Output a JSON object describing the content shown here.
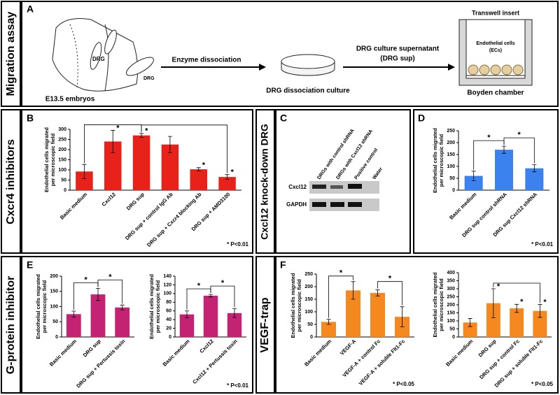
{
  "row_labels": [
    "Migration assay",
    "Cxcr4 inhibitors",
    "Cxcl12 knock-down DRG",
    "G-protein inhibitor",
    "VEGF-trap"
  ],
  "panel_letters": [
    "A",
    "B",
    "C",
    "D",
    "E",
    "F"
  ],
  "diagram": {
    "embryo_labels": [
      "DRG",
      "DRG"
    ],
    "embryo": "E13.5 embryos",
    "step1": "Enzyme dissociation",
    "culture": "DRG dissociation culture",
    "step2": [
      "DRG culture supernatant",
      "(DRG sup)"
    ],
    "insert": "Transwell insert",
    "cells": [
      "Endothelial cells",
      "(ECs)"
    ],
    "chamber": "Boyden chamber"
  },
  "gel": {
    "lanes": [
      "DRGs with control shRNA",
      "DRGs with Cxcl12 shRNA",
      "Positive control",
      "Water"
    ],
    "rows": [
      "Cxcl12",
      "GAPDH"
    ]
  },
  "chart_data": [
    {
      "type": "bar",
      "y_label": [
        "Endothelial cells migrated",
        "per microscopic field"
      ],
      "categories": [
        "Basic medium",
        "Cxcl12",
        "DRG sup",
        "DRG sup + control IgG Ab",
        "DRG sup + Cxcr4 blocking Ab",
        "DRG sup + AMD3100"
      ],
      "values": [
        92,
        240,
        270,
        225,
        103,
        65
      ],
      "errors": [
        35,
        55,
        10,
        40,
        8,
        12
      ],
      "stars": [
        null,
        "*",
        "*",
        null,
        "*",
        "*"
      ],
      "brackets": [
        {
          "pair": [
            0,
            2
          ]
        },
        {
          "pair": [
            2,
            5
          ]
        }
      ],
      "color": "#e8221b",
      "ylim": [
        0,
        300
      ],
      "yticks": [
        0,
        50,
        100,
        150,
        200,
        250,
        300
      ],
      "note": "* P<0.01"
    },
    {
      "type": "bar",
      "y_label": [
        "Endothelial cells migrated",
        "per microscopic field"
      ],
      "categories": [
        "Basic medium",
        "DRG sup control shRNA",
        "DRG sup Cxcl12 shRNA"
      ],
      "values": [
        60,
        170,
        92
      ],
      "errors": [
        20,
        15,
        15
      ],
      "brackets": [
        {
          "pair": [
            0,
            1
          ],
          "label": "*"
        },
        {
          "pair": [
            1,
            2
          ],
          "label": "*"
        }
      ],
      "color": "#3c82ef",
      "ylim": [
        0,
        250
      ],
      "yticks": [
        0,
        50,
        100,
        150,
        200,
        250
      ],
      "note": "* P<0.01"
    },
    {
      "type": "bar",
      "y_label": [
        "Endothelial cells migrated",
        "per microscopic field"
      ],
      "categories": [
        "Basic medium",
        "DRG sup",
        "DRG sup + Pertussis toxin"
      ],
      "values": [
        75,
        140,
        97
      ],
      "errors": [
        10,
        20,
        8
      ],
      "brackets": [
        {
          "pair": [
            0,
            1
          ],
          "label": "*"
        },
        {
          "pair": [
            1,
            2
          ],
          "label": "*"
        }
      ],
      "color": "#c42373",
      "ylim": [
        0,
        200
      ],
      "yticks": [
        0,
        50,
        100,
        150,
        200
      ]
    },
    {
      "type": "bar",
      "y_label": [
        "Endothelial cells migrated",
        "per microscopic field"
      ],
      "categories": [
        "Basic medium",
        "Cxcl12",
        "Cxcl12 + Pertussis toxin"
      ],
      "values": [
        52,
        95,
        55
      ],
      "errors": [
        8,
        3,
        10
      ],
      "brackets": [
        {
          "pair": [
            0,
            1
          ],
          "label": "*"
        },
        {
          "pair": [
            1,
            2
          ],
          "label": "*"
        }
      ],
      "color": "#c42373",
      "ylim": [
        0,
        140
      ],
      "yticks": [
        0,
        20,
        40,
        60,
        80,
        100,
        120,
        140
      ],
      "note": "* P<0.01"
    },
    {
      "type": "bar",
      "y_label": [
        "Endothelial cells migrated",
        "per microscopic field"
      ],
      "categories": [
        "Basic medium",
        "VEGF-A",
        "VEGF-A + control Fc",
        "VEGF-A + soluble Flt1-Fc"
      ],
      "values": [
        60,
        185,
        175,
        80
      ],
      "errors": [
        10,
        35,
        12,
        40
      ],
      "brackets": [
        {
          "pair": [
            0,
            1
          ],
          "label": "*"
        },
        {
          "pair": [
            2,
            3
          ],
          "label": "*"
        }
      ],
      "color": "#f5891f",
      "ylim": [
        0,
        250
      ],
      "yticks": [
        0,
        50,
        100,
        150,
        200,
        250
      ],
      "note": "* P<0.05"
    },
    {
      "type": "bar",
      "y_label": [
        "Endothelial cells migrated",
        "per microscopic field"
      ],
      "categories": [
        "Basic medium",
        "DRG sup",
        "DRG sup + control Fc",
        "DRG sup + soluble Flt1-Fc"
      ],
      "values": [
        90,
        210,
        178,
        162
      ],
      "errors": [
        25,
        90,
        25,
        40
      ],
      "stars": [
        null,
        "*",
        "*",
        "*"
      ],
      "brackets": [
        {
          "pair": [
            1,
            3
          ]
        }
      ],
      "color": "#f5891f",
      "ylim": [
        0,
        400
      ],
      "yticks": [
        0,
        50,
        100,
        150,
        200,
        250,
        300,
        350,
        400
      ],
      "note": "* P<0.05"
    }
  ]
}
